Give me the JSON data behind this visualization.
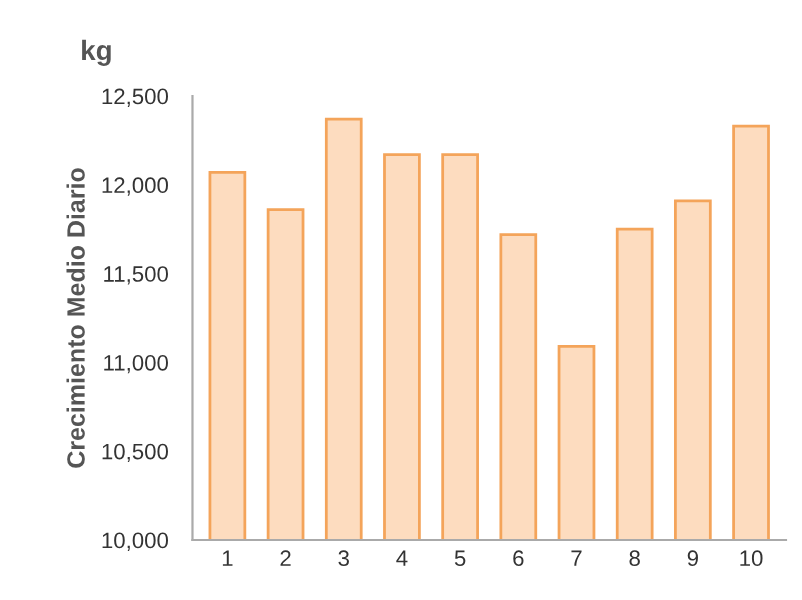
{
  "chart_data": {
    "type": "bar",
    "title": "kg",
    "ylabel": "Crecimiento Medio Diario",
    "categories": [
      "1",
      "2",
      "3",
      "4",
      "5",
      "6",
      "7",
      "8",
      "9",
      "10"
    ],
    "values": [
      12070,
      11860,
      12370,
      12170,
      12170,
      11720,
      11090,
      11750,
      11910,
      12330
    ],
    "color": "#fddcbf",
    "ylim": [
      10000,
      12500
    ],
    "yticks": [
      {
        "value": 10000,
        "label": "10,000"
      },
      {
        "value": 10500,
        "label": "10,500"
      },
      {
        "value": 11000,
        "label": "11,000"
      },
      {
        "value": 11500,
        "label": "11,500"
      },
      {
        "value": 12000,
        "label": "12,000"
      },
      {
        "value": 12500,
        "label": "12,500"
      }
    ],
    "grid": false,
    "legend": false
  }
}
